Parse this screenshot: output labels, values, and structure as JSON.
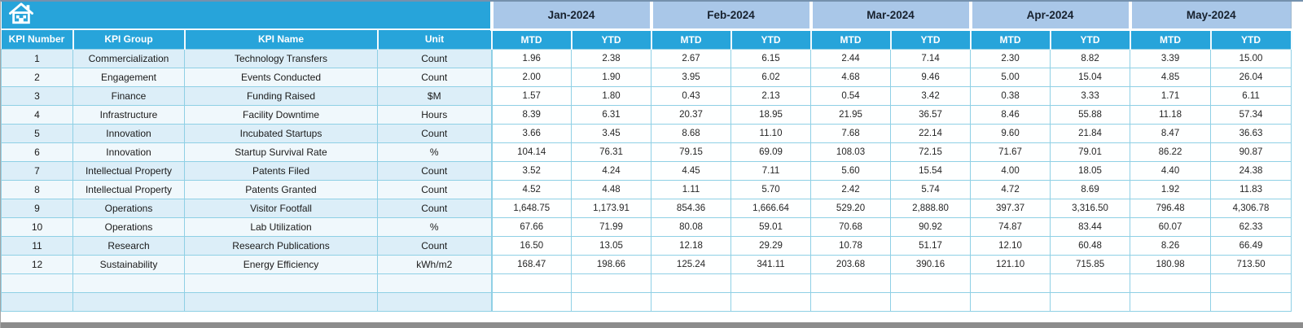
{
  "colors": {
    "header_cyan": "#27A4DA",
    "month_band": "#A9C7E8",
    "grid_line": "#8FD0E5",
    "row_tint": "#DCEEF8",
    "data_cell": "#FEFFFF",
    "bottom_bar": "#8C8C8C"
  },
  "icons": {
    "home": "home-icon"
  },
  "table": {
    "left_headers": [
      "KPI Number",
      "KPI Group",
      "KPI Name",
      "Unit"
    ],
    "months": [
      "Jan-2024",
      "Feb-2024",
      "Mar-2024",
      "Apr-2024",
      "May-2024"
    ],
    "sub_headers": [
      "MTD",
      "YTD"
    ],
    "empty_row_count": 2,
    "rows": [
      {
        "number": "1",
        "group": "Commercialization",
        "name": "Technology Transfers",
        "unit": "Count",
        "values": [
          "1.96",
          "2.38",
          "2.67",
          "6.15",
          "2.44",
          "7.14",
          "2.30",
          "8.82",
          "3.39",
          "15.00"
        ]
      },
      {
        "number": "2",
        "group": "Engagement",
        "name": "Events Conducted",
        "unit": "Count",
        "values": [
          "2.00",
          "1.90",
          "3.95",
          "6.02",
          "4.68",
          "9.46",
          "5.00",
          "15.04",
          "4.85",
          "26.04"
        ]
      },
      {
        "number": "3",
        "group": "Finance",
        "name": "Funding Raised",
        "unit": "$M",
        "values": [
          "1.57",
          "1.80",
          "0.43",
          "2.13",
          "0.54",
          "3.42",
          "0.38",
          "3.33",
          "1.71",
          "6.11"
        ]
      },
      {
        "number": "4",
        "group": "Infrastructure",
        "name": "Facility Downtime",
        "unit": "Hours",
        "values": [
          "8.39",
          "6.31",
          "20.37",
          "18.95",
          "21.95",
          "36.57",
          "8.46",
          "55.88",
          "11.18",
          "57.34"
        ]
      },
      {
        "number": "5",
        "group": "Innovation",
        "name": "Incubated Startups",
        "unit": "Count",
        "values": [
          "3.66",
          "3.45",
          "8.68",
          "11.10",
          "7.68",
          "22.14",
          "9.60",
          "21.84",
          "8.47",
          "36.63"
        ]
      },
      {
        "number": "6",
        "group": "Innovation",
        "name": "Startup Survival Rate",
        "unit": "%",
        "values": [
          "104.14",
          "76.31",
          "79.15",
          "69.09",
          "108.03",
          "72.15",
          "71.67",
          "79.01",
          "86.22",
          "90.87"
        ]
      },
      {
        "number": "7",
        "group": "Intellectual Property",
        "name": "Patents Filed",
        "unit": "Count",
        "values": [
          "3.52",
          "4.24",
          "4.45",
          "7.11",
          "5.60",
          "15.54",
          "4.00",
          "18.05",
          "4.40",
          "24.38"
        ]
      },
      {
        "number": "8",
        "group": "Intellectual Property",
        "name": "Patents Granted",
        "unit": "Count",
        "values": [
          "4.52",
          "4.48",
          "1.11",
          "5.70",
          "2.42",
          "5.74",
          "4.72",
          "8.69",
          "1.92",
          "11.83"
        ]
      },
      {
        "number": "9",
        "group": "Operations",
        "name": "Visitor Footfall",
        "unit": "Count",
        "values": [
          "1,648.75",
          "1,173.91",
          "854.36",
          "1,666.64",
          "529.20",
          "2,888.80",
          "397.37",
          "3,316.50",
          "796.48",
          "4,306.78"
        ]
      },
      {
        "number": "10",
        "group": "Operations",
        "name": "Lab Utilization",
        "unit": "%",
        "values": [
          "67.66",
          "71.99",
          "80.08",
          "59.01",
          "70.68",
          "90.92",
          "74.87",
          "83.44",
          "60.07",
          "62.33"
        ]
      },
      {
        "number": "11",
        "group": "Research",
        "name": "Research Publications",
        "unit": "Count",
        "values": [
          "16.50",
          "13.05",
          "12.18",
          "29.29",
          "10.78",
          "51.17",
          "12.10",
          "60.48",
          "8.26",
          "66.49"
        ]
      },
      {
        "number": "12",
        "group": "Sustainability",
        "name": "Energy Efficiency",
        "unit": "kWh/m2",
        "values": [
          "168.47",
          "198.66",
          "125.24",
          "341.11",
          "203.68",
          "390.16",
          "121.10",
          "715.85",
          "180.98",
          "713.50"
        ]
      }
    ]
  }
}
